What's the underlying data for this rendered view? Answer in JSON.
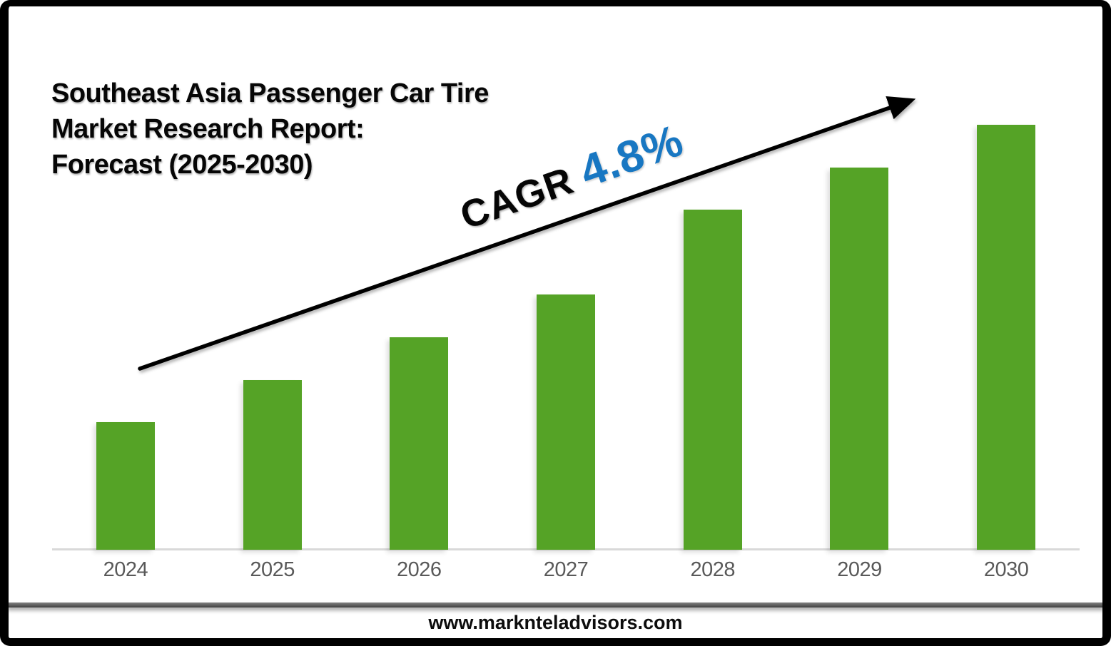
{
  "title": {
    "line1": "Southeast Asia Passenger Car Tire",
    "line2": "Market Research Report:",
    "line3": "Forecast (2025-2030)"
  },
  "cagr": {
    "label": "CAGR",
    "value": "4.8%"
  },
  "footer": {
    "url": "www.marknteladvisors.com"
  },
  "colors": {
    "bar_green": "#55A326",
    "axis_line_gray": "#D9D9D9",
    "tick_label_gray": "#595959",
    "cagr_blue": "#1877C2",
    "frame_black": "#000000",
    "title_black": "#060606"
  },
  "chart_data": {
    "type": "bar",
    "title": "Southeast Asia Passenger Car Tire Market Research Report: Forecast (2025-2030)",
    "categories": [
      "2024",
      "2025",
      "2026",
      "2027",
      "2028",
      "2029",
      "2030"
    ],
    "values": [
      30,
      40,
      50,
      60,
      80,
      90,
      100
    ],
    "unit": "relative bar height (no value axis shown)",
    "xlabel": "",
    "ylabel": "",
    "ylim": [
      0,
      100
    ],
    "grid": false,
    "legend": false,
    "bar_color": "#55A326",
    "annotation": "CAGR 4.8%",
    "annotation_arrow": "black trend arrow rising left-to-right above bars"
  }
}
